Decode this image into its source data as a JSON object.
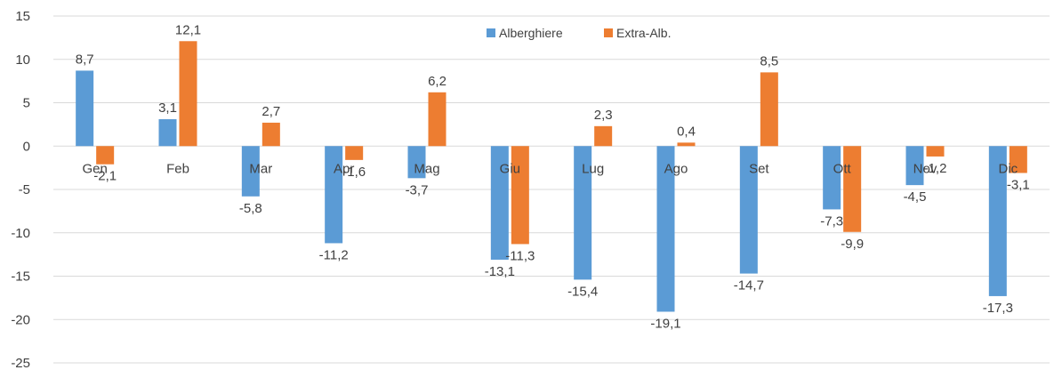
{
  "chart_data": {
    "type": "bar",
    "categories": [
      "Gen",
      "Feb",
      "Mar",
      "Apr",
      "Mag",
      "Giu",
      "Lug",
      "Ago",
      "Set",
      "Ott",
      "Nov",
      "Dic"
    ],
    "series": [
      {
        "name": "Alberghiere",
        "values": [
          8.7,
          3.1,
          -5.8,
          -11.2,
          -3.7,
          -13.1,
          -15.4,
          -19.1,
          -14.7,
          -7.3,
          -4.5,
          -17.3
        ],
        "labels": [
          "8,7",
          "3,1",
          "-5,8",
          "-11,2",
          "-3,7",
          "-13,1",
          "-15,4",
          "-19,1",
          "-14,7",
          "-7,3",
          "-4,5",
          "-17,3"
        ],
        "color": "#5B9BD5"
      },
      {
        "name": "Extra-Alb.",
        "values": [
          -2.1,
          12.1,
          2.7,
          -1.6,
          6.2,
          -11.3,
          2.3,
          0.4,
          8.5,
          -9.9,
          -1.2,
          -3.1
        ],
        "labels": [
          "-2,1",
          "12,1",
          "2,7",
          "-1,6",
          "6,2",
          "-11,3",
          "2,3",
          "0,4",
          "8,5",
          "-9,9",
          "-1,2",
          "-3,1"
        ],
        "color": "#ED7D31"
      }
    ],
    "ylim": [
      -25,
      15
    ],
    "yticks": [
      15,
      10,
      5,
      0,
      -5,
      -10,
      -15,
      -20,
      -25
    ],
    "grid": true,
    "legend": "top-center"
  }
}
